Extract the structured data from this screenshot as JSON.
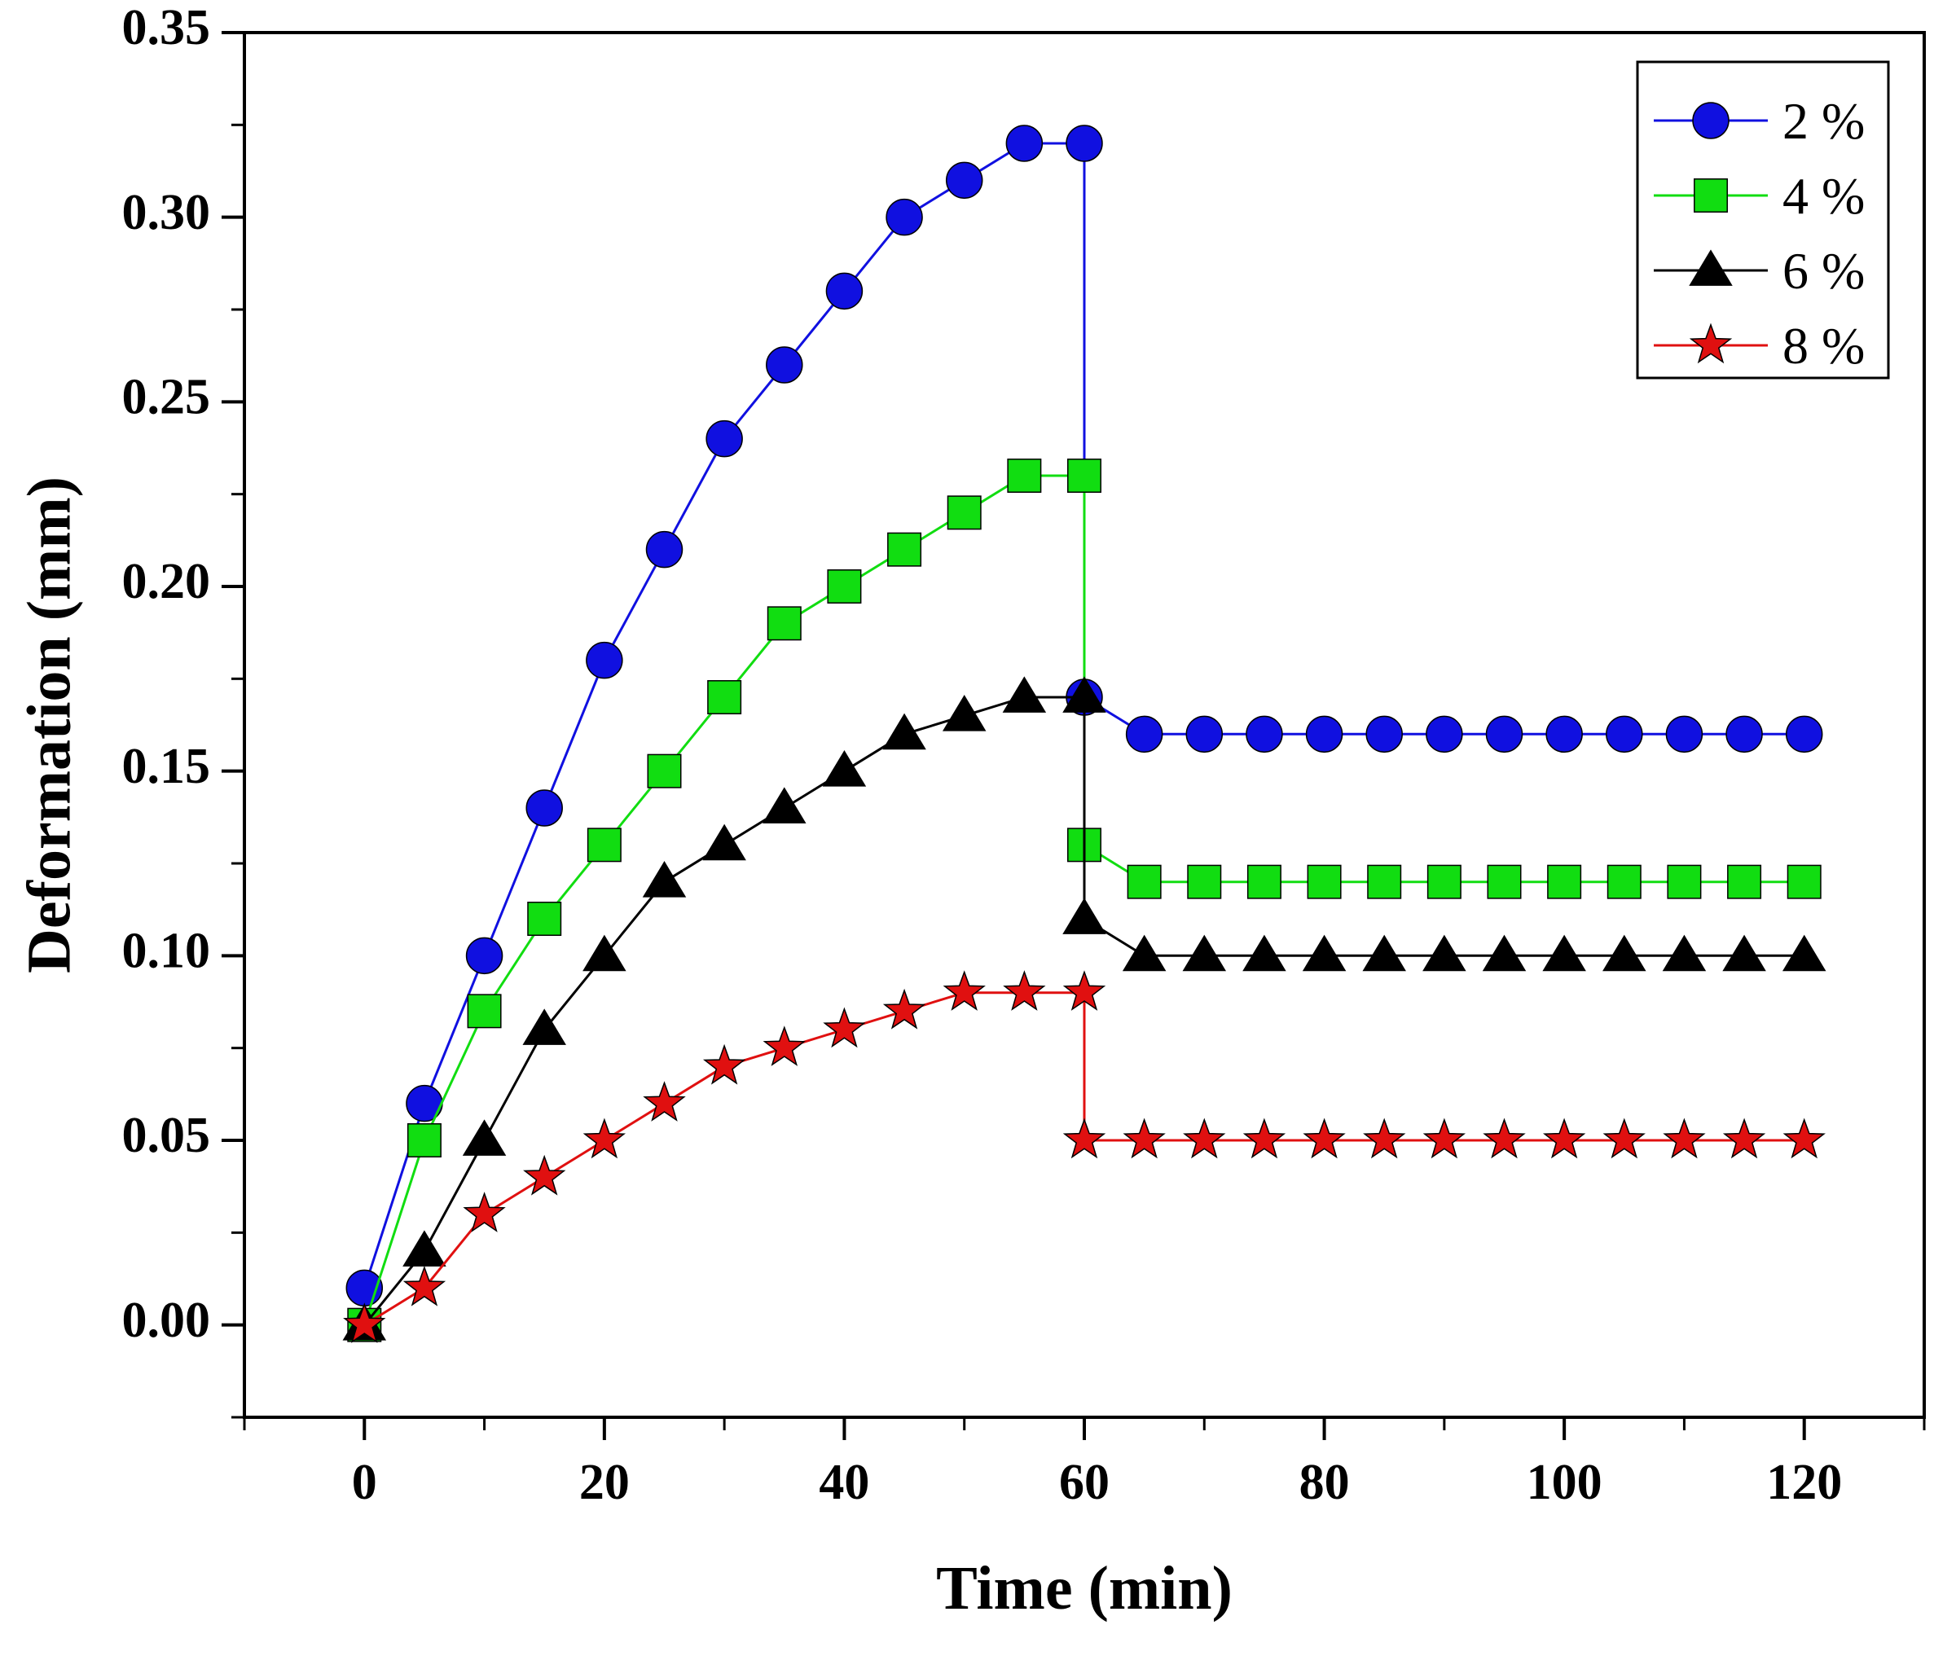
{
  "chart_data": {
    "type": "line",
    "title": "",
    "xlabel": "Time (min)",
    "ylabel": "Deformation (mm)",
    "xlim": [
      -10,
      130
    ],
    "ylim": [
      -0.025,
      0.35
    ],
    "x_ticks": [
      0,
      20,
      40,
      60,
      80,
      100,
      120
    ],
    "x_tick_labels": [
      "0",
      "20",
      "40",
      "60",
      "80",
      "100",
      "120"
    ],
    "y_ticks": [
      0.0,
      0.05,
      0.1,
      0.15,
      0.2,
      0.25,
      0.3,
      0.35
    ],
    "y_tick_labels": [
      "0.00",
      "0.05",
      "0.10",
      "0.15",
      "0.20",
      "0.25",
      "0.30",
      "0.35"
    ],
    "legend_position": "top-right",
    "grid": false,
    "series": [
      {
        "name": "2 %",
        "color": "#1010e0",
        "marker": "circle",
        "points": [
          [
            0,
            0.01
          ],
          [
            5,
            0.06
          ],
          [
            10,
            0.1
          ],
          [
            15,
            0.14
          ],
          [
            20,
            0.18
          ],
          [
            25,
            0.21
          ],
          [
            30,
            0.24
          ],
          [
            35,
            0.26
          ],
          [
            40,
            0.28
          ],
          [
            45,
            0.3
          ],
          [
            50,
            0.31
          ],
          [
            55,
            0.32
          ],
          [
            60,
            0.32
          ],
          [
            60,
            0.17
          ],
          [
            65,
            0.16
          ],
          [
            70,
            0.16
          ],
          [
            75,
            0.16
          ],
          [
            80,
            0.16
          ],
          [
            85,
            0.16
          ],
          [
            90,
            0.16
          ],
          [
            95,
            0.16
          ],
          [
            100,
            0.16
          ],
          [
            105,
            0.16
          ],
          [
            110,
            0.16
          ],
          [
            115,
            0.16
          ],
          [
            120,
            0.16
          ]
        ]
      },
      {
        "name": "4 %",
        "color": "#11dd11",
        "marker": "square",
        "points": [
          [
            0,
            0.0
          ],
          [
            5,
            0.05
          ],
          [
            10,
            0.085
          ],
          [
            15,
            0.11
          ],
          [
            20,
            0.13
          ],
          [
            25,
            0.15
          ],
          [
            30,
            0.17
          ],
          [
            35,
            0.19
          ],
          [
            40,
            0.2
          ],
          [
            45,
            0.21
          ],
          [
            50,
            0.22
          ],
          [
            55,
            0.23
          ],
          [
            60,
            0.23
          ],
          [
            60,
            0.13
          ],
          [
            65,
            0.12
          ],
          [
            70,
            0.12
          ],
          [
            75,
            0.12
          ],
          [
            80,
            0.12
          ],
          [
            85,
            0.12
          ],
          [
            90,
            0.12
          ],
          [
            95,
            0.12
          ],
          [
            100,
            0.12
          ],
          [
            105,
            0.12
          ],
          [
            110,
            0.12
          ],
          [
            115,
            0.12
          ],
          [
            120,
            0.12
          ]
        ]
      },
      {
        "name": "6 %",
        "color": "#000000",
        "marker": "triangle",
        "points": [
          [
            0,
            0.0
          ],
          [
            5,
            0.02
          ],
          [
            10,
            0.05
          ],
          [
            15,
            0.08
          ],
          [
            20,
            0.1
          ],
          [
            25,
            0.12
          ],
          [
            30,
            0.13
          ],
          [
            35,
            0.14
          ],
          [
            40,
            0.15
          ],
          [
            45,
            0.16
          ],
          [
            50,
            0.165
          ],
          [
            55,
            0.17
          ],
          [
            60,
            0.17
          ],
          [
            60,
            0.11
          ],
          [
            65,
            0.1
          ],
          [
            70,
            0.1
          ],
          [
            75,
            0.1
          ],
          [
            80,
            0.1
          ],
          [
            85,
            0.1
          ],
          [
            90,
            0.1
          ],
          [
            95,
            0.1
          ],
          [
            100,
            0.1
          ],
          [
            105,
            0.1
          ],
          [
            110,
            0.1
          ],
          [
            115,
            0.1
          ],
          [
            120,
            0.1
          ]
        ]
      },
      {
        "name": "8 %",
        "color": "#e01010",
        "marker": "star",
        "points": [
          [
            0,
            0.0
          ],
          [
            5,
            0.01
          ],
          [
            10,
            0.03
          ],
          [
            15,
            0.04
          ],
          [
            20,
            0.05
          ],
          [
            25,
            0.06
          ],
          [
            30,
            0.07
          ],
          [
            35,
            0.075
          ],
          [
            40,
            0.08
          ],
          [
            45,
            0.085
          ],
          [
            50,
            0.09
          ],
          [
            55,
            0.09
          ],
          [
            60,
            0.09
          ],
          [
            60,
            0.05
          ],
          [
            65,
            0.05
          ],
          [
            70,
            0.05
          ],
          [
            75,
            0.05
          ],
          [
            80,
            0.05
          ],
          [
            85,
            0.05
          ],
          [
            90,
            0.05
          ],
          [
            95,
            0.05
          ],
          [
            100,
            0.05
          ],
          [
            105,
            0.05
          ],
          [
            110,
            0.05
          ],
          [
            115,
            0.05
          ],
          [
            120,
            0.05
          ]
        ]
      }
    ]
  }
}
